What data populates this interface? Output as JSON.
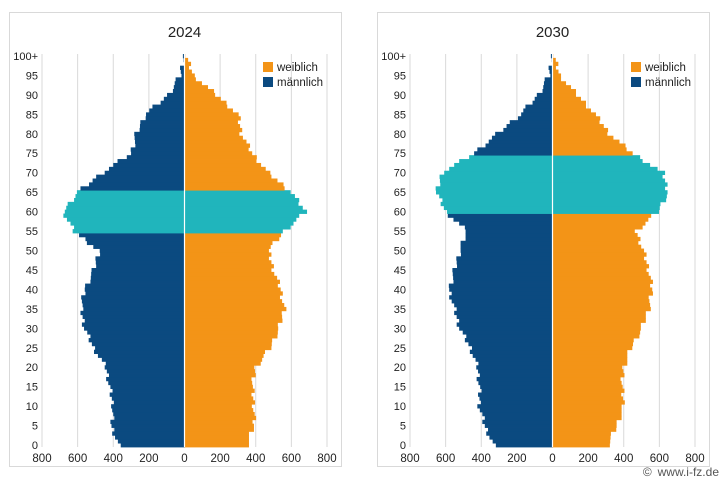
{
  "watermark": {
    "symbol": "©",
    "text": "www.i-fz.de"
  },
  "colors": {
    "female": "#f39417",
    "male": "#0b4a80",
    "highlight": "#20b5bc",
    "grid": "#d9d9d9",
    "axis": "#bfbfbf",
    "text": "#222222"
  },
  "chart_data": [
    {
      "type": "bar",
      "subtype": "population-pyramid",
      "title": "2024",
      "xlabel": "",
      "ylabel": "",
      "xlim": [
        -800,
        800
      ],
      "xticks": [
        -800,
        -600,
        -400,
        -200,
        0,
        200,
        400,
        600,
        800
      ],
      "xtick_labels": [
        "800",
        "600",
        "400",
        "200",
        "0",
        "200",
        "400",
        "600",
        "800"
      ],
      "ytick_labels": [
        "0",
        "5",
        "10",
        "15",
        "20",
        "25",
        "30",
        "35",
        "40",
        "45",
        "50",
        "55",
        "60",
        "65",
        "70",
        "75",
        "80",
        "85",
        "90",
        "95",
        "100+"
      ],
      "ages": [
        0,
        5,
        10,
        15,
        20,
        25,
        30,
        35,
        40,
        45,
        50,
        55,
        60,
        65,
        70,
        75,
        80,
        85,
        90,
        95,
        100
      ],
      "highlight_ages": [
        55,
        65
      ],
      "legend": {
        "position": "top-right",
        "entries": [
          "weiblich",
          "männlich"
        ]
      },
      "grid": true,
      "series": [
        {
          "name": "männlich",
          "values": [
            370,
            410,
            400,
            420,
            440,
            510,
            560,
            580,
            560,
            510,
            480,
            620,
            680,
            600,
            460,
            300,
            270,
            220,
            90,
            25,
            5
          ]
        },
        {
          "name": "weiblich",
          "values": [
            350,
            390,
            390,
            380,
            400,
            480,
            530,
            560,
            540,
            500,
            470,
            560,
            680,
            600,
            470,
            380,
            320,
            300,
            180,
            50,
            8
          ]
        }
      ]
    },
    {
      "type": "bar",
      "subtype": "population-pyramid",
      "title": "2030",
      "xlabel": "",
      "ylabel": "",
      "xlim": [
        -800,
        800
      ],
      "xticks": [
        -800,
        -600,
        -400,
        -200,
        0,
        200,
        400,
        600,
        800
      ],
      "xtick_labels": [
        "800",
        "600",
        "400",
        "200",
        "0",
        "200",
        "400",
        "600",
        "800"
      ],
      "ytick_labels": [
        "0",
        "5",
        "10",
        "15",
        "20",
        "25",
        "30",
        "35",
        "40",
        "45",
        "50",
        "55",
        "60",
        "65",
        "70",
        "75",
        "80",
        "85",
        "90",
        "95",
        "100+"
      ],
      "ages": [
        0,
        5,
        10,
        15,
        20,
        25,
        30,
        35,
        40,
        45,
        50,
        55,
        60,
        65,
        70,
        75,
        80,
        85,
        90,
        95,
        100
      ],
      "highlight_ages": [
        60,
        74
      ],
      "legend": {
        "position": "top-right",
        "entries": [
          "weiblich",
          "männlich"
        ]
      },
      "grid": true,
      "series": [
        {
          "name": "männlich",
          "values": [
            330,
            380,
            410,
            410,
            420,
            460,
            520,
            550,
            580,
            550,
            520,
            480,
            600,
            650,
            620,
            440,
            310,
            180,
            80,
            20,
            5
          ]
        },
        {
          "name": "weiblich",
          "values": [
            310,
            360,
            400,
            390,
            400,
            440,
            500,
            540,
            560,
            540,
            510,
            470,
            590,
            650,
            620,
            450,
            320,
            240,
            140,
            40,
            8
          ]
        }
      ]
    }
  ]
}
